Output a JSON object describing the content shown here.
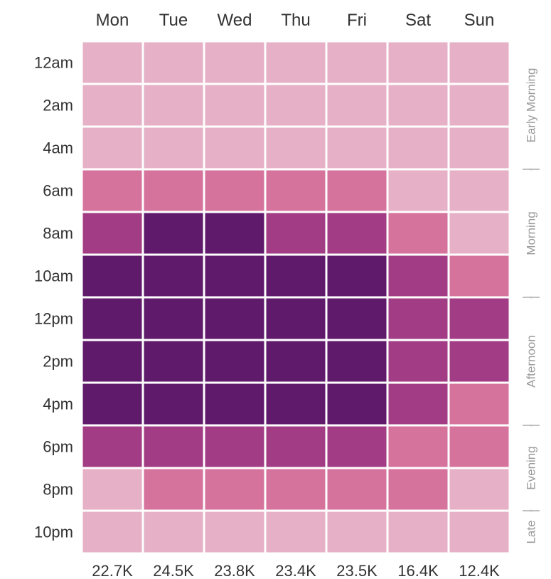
{
  "chart_data": {
    "type": "heatmap",
    "title": "",
    "x": [
      "Mon",
      "Tue",
      "Wed",
      "Thu",
      "Fri",
      "Sat",
      "Sun"
    ],
    "y": [
      "12am",
      "2am",
      "4am",
      "6am",
      "8am",
      "10am",
      "12pm",
      "2pm",
      "4pm",
      "6pm",
      "8pm",
      "10pm"
    ],
    "values": [
      [
        1,
        1,
        1,
        1,
        1,
        1,
        1
      ],
      [
        1,
        1,
        1,
        1,
        1,
        1,
        1
      ],
      [
        1,
        1,
        1,
        1,
        1,
        1,
        1
      ],
      [
        2,
        2,
        2,
        2,
        2,
        1,
        1
      ],
      [
        3,
        4,
        4,
        3,
        3,
        2,
        1
      ],
      [
        4,
        4,
        4,
        4,
        4,
        3,
        2
      ],
      [
        4,
        4,
        4,
        4,
        4,
        3,
        3
      ],
      [
        4,
        4,
        4,
        4,
        4,
        3,
        3
      ],
      [
        4,
        4,
        4,
        4,
        4,
        3,
        2
      ],
      [
        3,
        3,
        3,
        3,
        3,
        2,
        2
      ],
      [
        1,
        2,
        2,
        2,
        2,
        2,
        1
      ],
      [
        1,
        1,
        1,
        1,
        1,
        1,
        1
      ]
    ],
    "colors": [
      "#e6b0c6",
      "#d6739c",
      "#a23c84",
      "#5f1a6b"
    ],
    "column_totals": [
      "22.7K",
      "24.5K",
      "23.8K",
      "23.4K",
      "23.5K",
      "16.4K",
      "12.4K"
    ],
    "row_groups": [
      {
        "label": "Early Morning",
        "rows": [
          0,
          2
        ]
      },
      {
        "label": "Morning",
        "rows": [
          3,
          5
        ]
      },
      {
        "label": "Afternoon",
        "rows": [
          6,
          8
        ]
      },
      {
        "label": "Evening",
        "rows": [
          9,
          10
        ]
      },
      {
        "label": "Late",
        "rows": [
          11,
          11
        ]
      }
    ],
    "legend": "none",
    "grid": false
  }
}
